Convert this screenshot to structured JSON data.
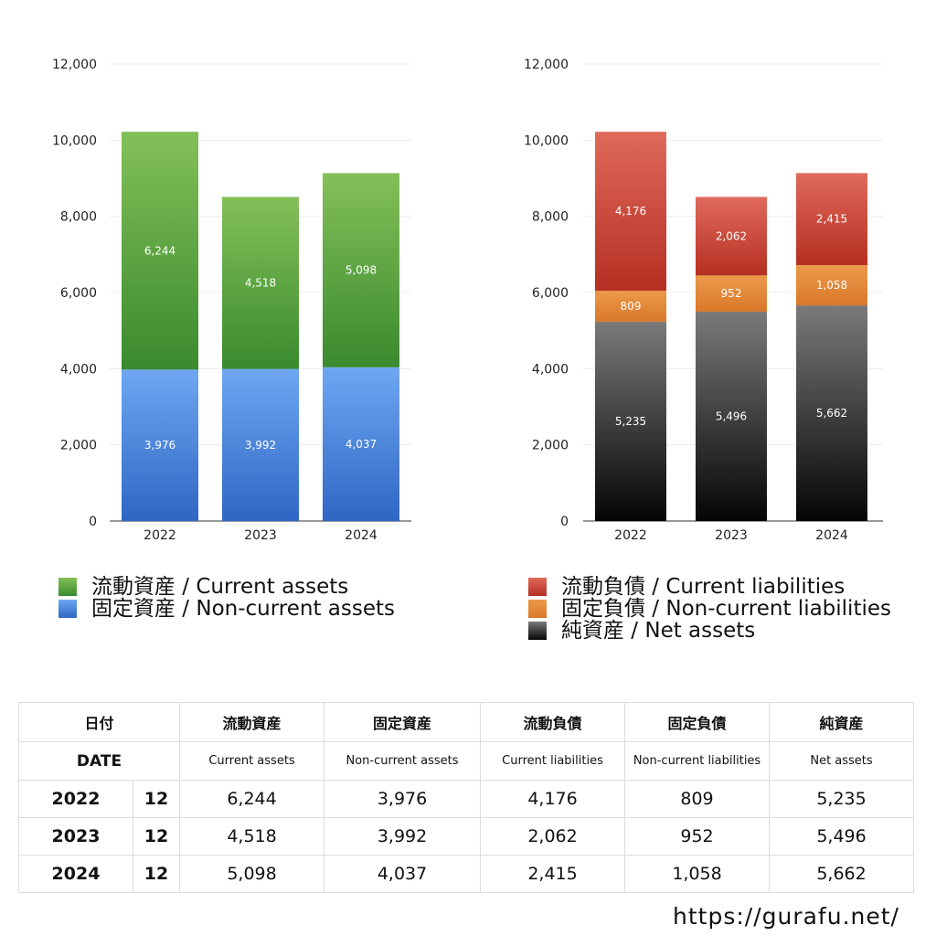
{
  "chart_data": [
    {
      "type": "bar",
      "stacked": true,
      "categories": [
        "2022",
        "2023",
        "2024"
      ],
      "ylim": [
        0,
        12000
      ],
      "yticks": [
        "0",
        "2,000",
        "4,000",
        "6,000",
        "8,000",
        "10,000",
        "12,000"
      ],
      "grid": true,
      "legend_position": "bottom-left",
      "series": [
        {
          "name": "固定資産 / Non-current assets",
          "values": [
            3976,
            3992,
            4037
          ],
          "labels": [
            "3,976",
            "3,992",
            "4,037"
          ],
          "color_top": "#6ea7f2",
          "color_bottom": "#2f66c4"
        },
        {
          "name": "流動資産 / Current assets",
          "values": [
            6244,
            4518,
            5098
          ],
          "labels": [
            "6,244",
            "4,518",
            "5,098"
          ],
          "color_top": "#84c059",
          "color_bottom": "#3a8a2e"
        }
      ],
      "legend": [
        {
          "label": "流動資産 / Current assets",
          "color": "#4f9e3a"
        },
        {
          "label": "固定資産 / Non-current assets",
          "color": "#4c86dc"
        }
      ]
    },
    {
      "type": "bar",
      "stacked": true,
      "categories": [
        "2022",
        "2023",
        "2024"
      ],
      "ylim": [
        0,
        12000
      ],
      "yticks": [
        "0",
        "2,000",
        "4,000",
        "6,000",
        "8,000",
        "10,000",
        "12,000"
      ],
      "grid": true,
      "legend_position": "bottom-left",
      "series": [
        {
          "name": "純資産 / Net assets",
          "values": [
            5235,
            5496,
            5662
          ],
          "labels": [
            "5,235",
            "5,496",
            "5,662"
          ],
          "color_top": "#7a7a7a",
          "color_bottom": "#050505"
        },
        {
          "name": "固定負債 / Non-current liabilities",
          "values": [
            809,
            952,
            1058
          ],
          "labels": [
            "809",
            "952",
            "1,058"
          ],
          "color_top": "#eb9a4a",
          "color_bottom": "#d9782a"
        },
        {
          "name": "流動負債 / Current liabilities",
          "values": [
            4176,
            2062,
            2415
          ],
          "labels": [
            "4,176",
            "2,062",
            "2,415"
          ],
          "color_top": "#e06a5c",
          "color_bottom": "#b52f22"
        }
      ],
      "legend": [
        {
          "label": "流動負債 / Current liabilities",
          "color": "#cf4a3c"
        },
        {
          "label": "固定負債 / Non-current liabilities",
          "color": "#e3893a"
        },
        {
          "label": "純資産 / Net assets",
          "color": "#333333"
        }
      ]
    }
  ],
  "table": {
    "header_jp": {
      "date": "日付",
      "ca": "流動資産",
      "nca": "固定資産",
      "cl": "流動負債",
      "ncl": "固定負債",
      "na": "純資産"
    },
    "header_en": {
      "date": "DATE",
      "ca": "Current assets",
      "nca": "Non-current assets",
      "cl": "Current liabilities",
      "ncl": "Non-current liabilities",
      "na": "Net assets"
    },
    "rows": [
      {
        "year": "2022",
        "month": "12",
        "ca": "6,244",
        "nca": "3,976",
        "cl": "4,176",
        "ncl": "809",
        "na": "5,235"
      },
      {
        "year": "2023",
        "month": "12",
        "ca": "4,518",
        "nca": "3,992",
        "cl": "2,062",
        "ncl": "952",
        "na": "5,496"
      },
      {
        "year": "2024",
        "month": "12",
        "ca": "5,098",
        "nca": "4,037",
        "cl": "2,415",
        "ncl": "1,058",
        "na": "5,662"
      }
    ]
  },
  "footer": {
    "url": "https://gurafu.net/"
  }
}
